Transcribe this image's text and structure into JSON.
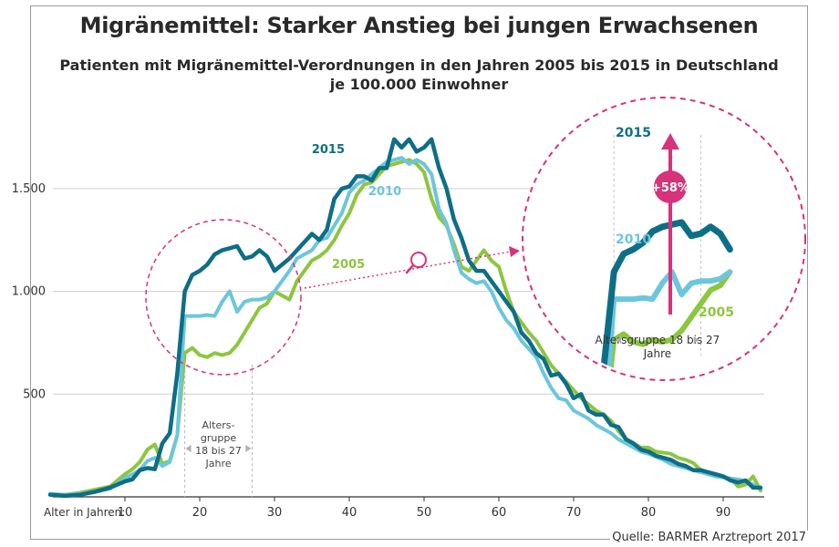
{
  "title": "Migränemittel: Starker Anstieg bei jungen Erwachsenen",
  "subtitle_line1": "Patienten mit Migränemittel-Verordnungen in den Jahren 2005 bis 2015 in Deutschland",
  "subtitle_line2": "je 100.000 Einwohner",
  "source": "Quelle: BARMER Arztreport 2017",
  "colors": {
    "s2005": "#8dc63f",
    "s2010": "#6cc6dc",
    "s2015": "#0e6e86",
    "accent": "#d6337a",
    "grid": "#cfcfcf",
    "axis": "#333333"
  },
  "chart_data": {
    "type": "line",
    "xlabel": "Alter in Jahren:",
    "xlim": [
      0,
      95
    ],
    "ylim": [
      0,
      1800
    ],
    "xticks": [
      10,
      20,
      30,
      40,
      50,
      60,
      70,
      80,
      90
    ],
    "yticks": [
      {
        "v": 500,
        "label": "500"
      },
      {
        "v": 1000,
        "label": "1.000"
      },
      {
        "v": 1500,
        "label": "1.500"
      }
    ],
    "grid": "horizontal",
    "series": [
      {
        "name": "2005",
        "color": "#8dc63f",
        "x": [
          0,
          2,
          4,
          6,
          8,
          10,
          11,
          12,
          13,
          14,
          15,
          16,
          17,
          18,
          19,
          20,
          21,
          22,
          23,
          24,
          25,
          26,
          27,
          28,
          29,
          30,
          31,
          32,
          33,
          34,
          35,
          36,
          37,
          38,
          39,
          40,
          41,
          42,
          43,
          44,
          45,
          46,
          47,
          48,
          49,
          50,
          51,
          52,
          53,
          54,
          55,
          56,
          57,
          58,
          59,
          60,
          61,
          62,
          63,
          64,
          65,
          66,
          67,
          68,
          69,
          70,
          71,
          72,
          73,
          74,
          75,
          76,
          77,
          78,
          79,
          80,
          81,
          82,
          83,
          84,
          85,
          86,
          87,
          88,
          89,
          90,
          91,
          92,
          93,
          94,
          95
        ],
        "y": [
          15,
          10,
          20,
          35,
          50,
          110,
          135,
          170,
          230,
          255,
          160,
          175,
          300,
          700,
          725,
          690,
          680,
          700,
          690,
          700,
          740,
          800,
          860,
          920,
          940,
          1000,
          980,
          960,
          1050,
          1100,
          1150,
          1170,
          1200,
          1250,
          1320,
          1380,
          1470,
          1520,
          1530,
          1570,
          1610,
          1620,
          1630,
          1640,
          1620,
          1580,
          1450,
          1360,
          1320,
          1230,
          1120,
          1100,
          1150,
          1200,
          1150,
          1120,
          1000,
          900,
          850,
          800,
          760,
          700,
          640,
          600,
          560,
          520,
          480,
          450,
          420,
          400,
          370,
          320,
          280,
          260,
          240,
          240,
          220,
          215,
          210,
          190,
          180,
          165,
          130,
          110,
          100,
          95,
          90,
          50,
          60,
          100,
          30
        ]
      },
      {
        "name": "2010",
        "color": "#6cc6dc",
        "x": [
          0,
          2,
          4,
          6,
          8,
          10,
          11,
          12,
          13,
          14,
          15,
          16,
          17,
          18,
          19,
          20,
          21,
          22,
          23,
          24,
          25,
          26,
          27,
          28,
          29,
          30,
          31,
          32,
          33,
          34,
          35,
          36,
          37,
          38,
          39,
          40,
          41,
          42,
          43,
          44,
          45,
          46,
          47,
          48,
          49,
          50,
          51,
          52,
          53,
          54,
          55,
          56,
          57,
          58,
          59,
          60,
          61,
          62,
          63,
          64,
          65,
          66,
          67,
          68,
          69,
          70,
          71,
          72,
          73,
          74,
          75,
          76,
          77,
          78,
          79,
          80,
          81,
          82,
          83,
          84,
          85,
          86,
          87,
          88,
          89,
          90,
          91,
          92,
          93,
          94,
          95
        ],
        "y": [
          15,
          10,
          15,
          25,
          40,
          90,
          110,
          130,
          175,
          190,
          150,
          170,
          300,
          880,
          880,
          880,
          885,
          880,
          950,
          1000,
          900,
          950,
          960,
          960,
          970,
          1000,
          1050,
          1100,
          1160,
          1180,
          1200,
          1250,
          1260,
          1320,
          1380,
          1480,
          1520,
          1540,
          1570,
          1600,
          1630,
          1640,
          1650,
          1620,
          1640,
          1620,
          1570,
          1400,
          1330,
          1200,
          1090,
          1060,
          1040,
          1050,
          1000,
          920,
          860,
          820,
          760,
          720,
          680,
          600,
          530,
          480,
          470,
          420,
          400,
          380,
          350,
          330,
          310,
          280,
          260,
          240,
          220,
          210,
          195,
          180,
          160,
          150,
          140,
          130,
          120,
          110,
          100,
          95,
          90,
          85,
          75,
          60,
          40
        ]
      },
      {
        "name": "2015",
        "color": "#0e6e86",
        "x": [
          0,
          2,
          4,
          6,
          8,
          10,
          11,
          12,
          13,
          14,
          15,
          16,
          17,
          18,
          19,
          20,
          21,
          22,
          23,
          24,
          25,
          26,
          27,
          28,
          29,
          30,
          31,
          32,
          33,
          34,
          35,
          36,
          37,
          38,
          39,
          40,
          41,
          42,
          43,
          44,
          45,
          46,
          47,
          48,
          49,
          50,
          51,
          52,
          53,
          54,
          55,
          56,
          57,
          58,
          59,
          60,
          61,
          62,
          63,
          64,
          65,
          66,
          67,
          68,
          69,
          70,
          71,
          72,
          73,
          74,
          75,
          76,
          77,
          78,
          79,
          80,
          81,
          82,
          83,
          84,
          85,
          86,
          87,
          88,
          89,
          90,
          91,
          92,
          93,
          94,
          95
        ],
        "y": [
          10,
          5,
          10,
          25,
          45,
          75,
          85,
          130,
          140,
          135,
          260,
          310,
          600,
          1000,
          1080,
          1100,
          1130,
          1180,
          1200,
          1210,
          1220,
          1160,
          1170,
          1200,
          1170,
          1100,
          1130,
          1160,
          1200,
          1240,
          1280,
          1250,
          1300,
          1450,
          1500,
          1510,
          1560,
          1560,
          1540,
          1600,
          1600,
          1740,
          1700,
          1740,
          1680,
          1700,
          1740,
          1600,
          1500,
          1350,
          1260,
          1150,
          1100,
          1100,
          1050,
          1000,
          950,
          900,
          800,
          760,
          700,
          670,
          590,
          600,
          550,
          480,
          500,
          420,
          400,
          400,
          350,
          340,
          280,
          260,
          230,
          220,
          200,
          190,
          180,
          160,
          150,
          130,
          130,
          120,
          110,
          100,
          80,
          70,
          80,
          45,
          45
        ]
      }
    ],
    "annotations": {
      "age_group_label": [
        "Alters-",
        "gruppe",
        "18 bis 27",
        "Jahre"
      ],
      "zoom_age_group_label_line1": "Altersgruppe 18 bis 27",
      "zoom_age_group_label_line2": "Jahre",
      "increase_label": "+58%",
      "highlight_range": [
        18,
        27
      ]
    }
  }
}
